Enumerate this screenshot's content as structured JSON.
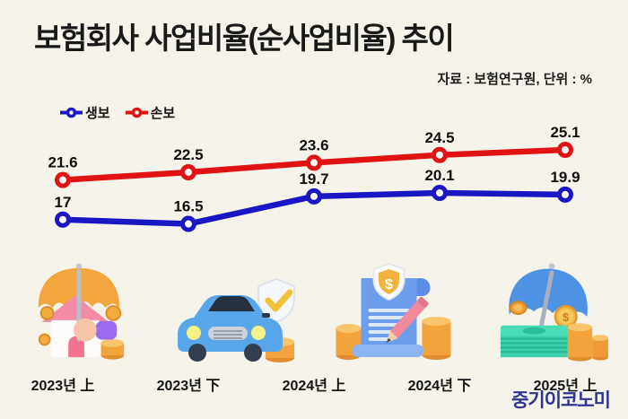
{
  "page": {
    "title": "보험회사 사업비율(순사업비율) 추이",
    "source_note": "자료 : 보험연구원, 단위 : %",
    "logo": "중기이코노미"
  },
  "colors": {
    "background": "#f6f3ea",
    "title": "#191919",
    "life_series": "#1a16c4",
    "nonlife_series": "#e01212",
    "logo": "#2e3590",
    "data_label": "#101010"
  },
  "chart_data": {
    "type": "line",
    "title": "보험회사 사업비율(순사업비율) 추이",
    "source": "보험연구원",
    "unit": "%",
    "categories": [
      "2023년 上",
      "2023년 下",
      "2024년 上",
      "2024년 下",
      "2025년 上"
    ],
    "series": [
      {
        "name": "생보",
        "color": "#1a16c4",
        "values": [
          17,
          16.5,
          19.7,
          20.1,
          19.9
        ]
      },
      {
        "name": "손보",
        "color": "#e01212",
        "values": [
          21.6,
          22.5,
          23.6,
          24.5,
          25.1
        ]
      }
    ],
    "ylim": [
      15,
      27
    ],
    "grid": false,
    "axes_visible": false,
    "data_labels": true,
    "legend_position": "top-left"
  },
  "icons": [
    {
      "name": "umbrella-house-icon"
    },
    {
      "name": "car-shield-icon"
    },
    {
      "name": "document-shield-icon"
    },
    {
      "name": "umbrella-money-icon"
    }
  ]
}
